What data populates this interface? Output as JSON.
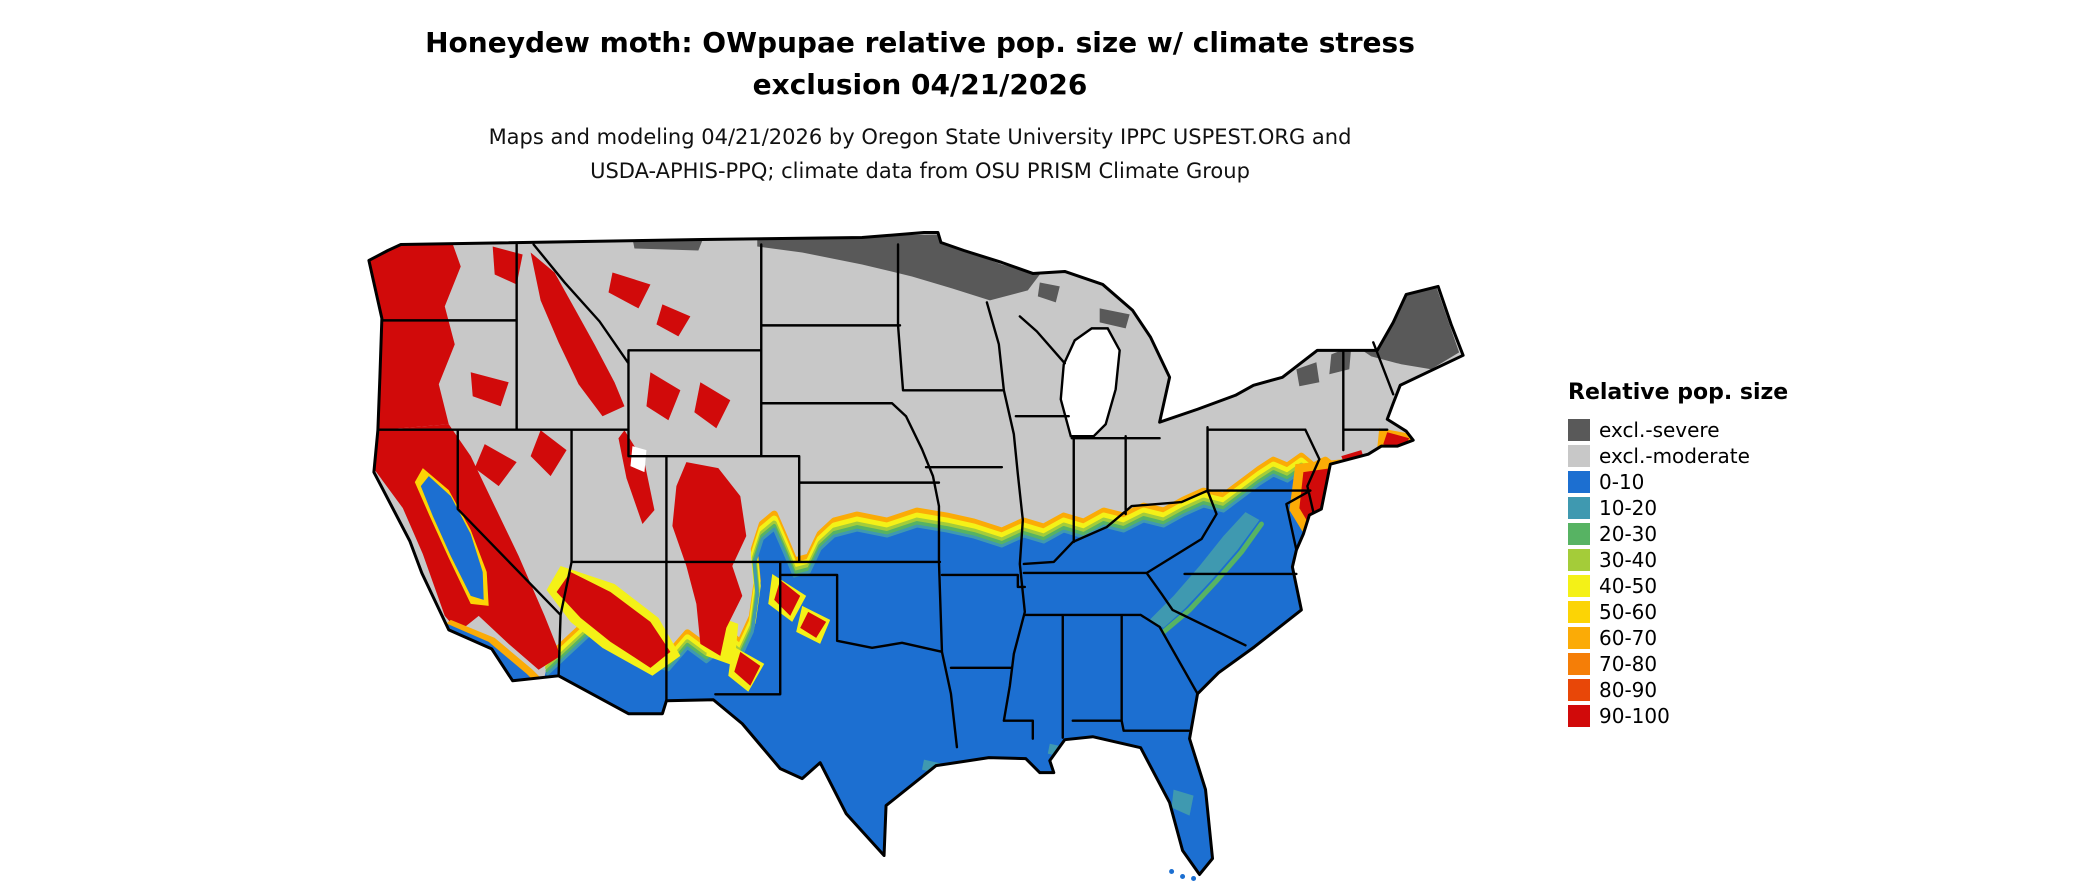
{
  "title": {
    "line1": "Honeydew moth: OWpupae relative pop. size w/ climate stress",
    "line2": "exclusion 04/21/2026"
  },
  "subtitle": {
    "line1": "Maps and modeling 04/21/2026 by Oregon State University IPPC USPEST.ORG and",
    "line2": "USDA-APHIS-PPQ; climate data from OSU PRISM Climate Group"
  },
  "legend": {
    "title": "Relative pop. size",
    "items": [
      {
        "label": "excl.-severe",
        "color": "#595959"
      },
      {
        "label": "excl.-moderate",
        "color": "#c8c8c8"
      },
      {
        "label": "0-10",
        "color": "#1c6fd1"
      },
      {
        "label": "10-20",
        "color": "#3f99b0"
      },
      {
        "label": "20-30",
        "color": "#57b363"
      },
      {
        "label": "30-40",
        "color": "#a4cc39"
      },
      {
        "label": "40-50",
        "color": "#f4f117"
      },
      {
        "label": "50-60",
        "color": "#fcd405"
      },
      {
        "label": "60-70",
        "color": "#fbab06"
      },
      {
        "label": "70-80",
        "color": "#f57e07"
      },
      {
        "label": "80-90",
        "color": "#e84708"
      },
      {
        "label": "90-100",
        "color": "#d10a0a"
      }
    ]
  },
  "map": {
    "area": "Continental United States",
    "date_shown": "04/21/2026",
    "classes_shown": [
      {
        "class": "excl.-severe",
        "where": "northern Minnesota, northern North Dakota border, upper Michigan, most of Maine and northern New England"
      },
      {
        "class": "excl.-moderate",
        "where": "northern and central interior states"
      },
      {
        "class": "90-100",
        "where": "Pacific Northwest coast and Cascades, Sierra Nevada, northern California, Rocky Mountains, Mogollon Rim, mid-Atlantic coast near Delaware"
      },
      {
        "class": "0-10",
        "where": "southern states from southern California and Arizona through Texas, the Gulf Coast, Florida and the Southeast up to Virginia"
      },
      {
        "class": "10-20 to 80-90",
        "where": "transition band across southern Kansas/Missouri/Kentucky to the Chesapeake, Appalachians, and fringes of western mountain zones"
      }
    ]
  }
}
